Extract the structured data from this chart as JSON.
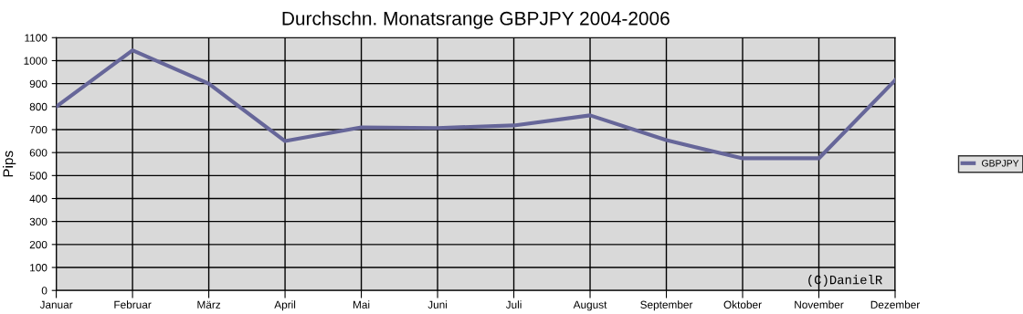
{
  "chart_data": {
    "type": "line",
    "title": "Durchschn. Monatsrange GBPJPY 2004-2006",
    "ylabel": "Pips",
    "categories": [
      "Januar",
      "Februar",
      "März",
      "April",
      "Mai",
      "Juni",
      "Juli",
      "August",
      "September",
      "Oktober",
      "November",
      "Dezember"
    ],
    "series": [
      {
        "name": "GBPJPY",
        "color": "#666699",
        "values": [
          800,
          1045,
          900,
          650,
          710,
          707,
          718,
          762,
          654,
          575,
          575,
          915
        ]
      }
    ],
    "ylim": [
      0,
      1100
    ],
    "yticks": [
      0,
      100,
      200,
      300,
      400,
      500,
      600,
      700,
      800,
      900,
      1000,
      1100
    ],
    "grid": true,
    "legend": "right",
    "marker": "none",
    "line_style": "solid",
    "annotations": [
      "(C)DanielR"
    ]
  }
}
